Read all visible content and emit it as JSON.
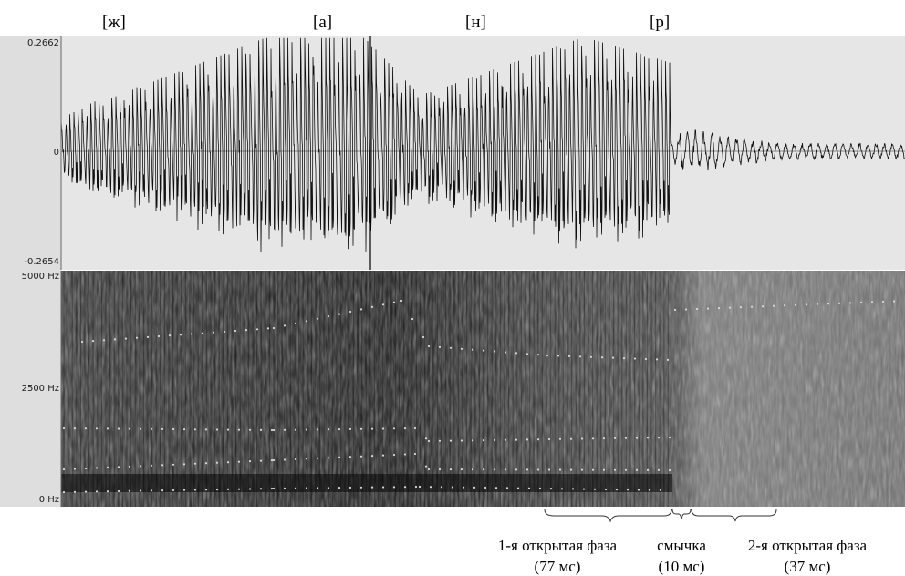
{
  "chart_data": {
    "type": "waveform-spectrogram",
    "phones": [
      "[ж]",
      "[а]",
      "[н]",
      "[р]"
    ],
    "waveform": {
      "ymax_label": "0.2662",
      "zero_label": "0",
      "ymin_label": "-0.2654",
      "ylim": [
        -0.2654,
        0.2662
      ]
    },
    "spectrogram": {
      "ticks": [
        "5000 Hz",
        "2500 Hz",
        "0 Hz"
      ],
      "ylim": [
        0,
        5000
      ]
    },
    "phases": [
      {
        "label": "1-я открытая фаза",
        "duration": "(77 мс)"
      },
      {
        "label": "смычка",
        "duration": "(10 мс)"
      },
      {
        "label": "2-я открытая фаза",
        "duration": "(37 мс)"
      }
    ],
    "grid": false
  }
}
